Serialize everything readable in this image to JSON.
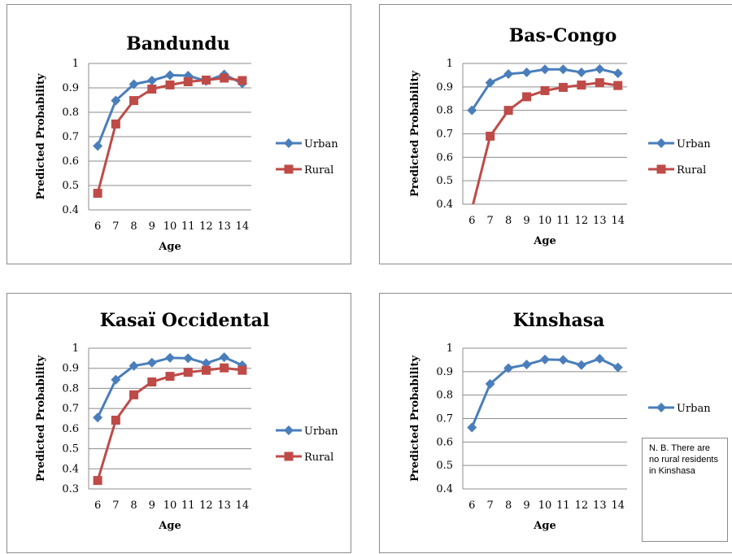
{
  "colors": {
    "urban": "#4a7ebb",
    "rural": "#be4b48",
    "grid": "#8c8c8c",
    "axis": "#8c8c8c"
  },
  "chart_data": [
    {
      "type": "line",
      "title": "Bandundu",
      "xlabel": "Age",
      "ylabel": "Predicted Probability",
      "categories": [
        "6",
        "7",
        "8",
        "9",
        "10",
        "11",
        "12",
        "13",
        "14"
      ],
      "ylim": [
        0.4,
        1
      ],
      "yticks": [
        "0.4",
        "0.5",
        "0.6",
        "0.7",
        "0.8",
        "0.9",
        "1"
      ],
      "grid": true,
      "legend": "right",
      "series": [
        {
          "name": "Urban",
          "color": "#4a7ebb",
          "marker": "diamond",
          "values": [
            0.662,
            0.848,
            0.915,
            0.93,
            0.952,
            0.95,
            0.928,
            0.955,
            0.918
          ]
        },
        {
          "name": "Rural",
          "color": "#be4b48",
          "marker": "square",
          "values": [
            0.468,
            0.752,
            0.848,
            0.895,
            0.912,
            0.925,
            0.932,
            0.94,
            0.93
          ]
        }
      ]
    },
    {
      "type": "line",
      "title": "Bas-Congo",
      "xlabel": "Age",
      "ylabel": "Predicted Probability",
      "categories": [
        "6",
        "7",
        "8",
        "9",
        "10",
        "11",
        "12",
        "13",
        "14"
      ],
      "ylim": [
        0.4,
        1
      ],
      "yticks": [
        "0.4",
        "0.5",
        "0.6",
        "0.7",
        "0.8",
        "0.9",
        "1"
      ],
      "grid": true,
      "legend": "right",
      "series": [
        {
          "name": "Urban",
          "color": "#4a7ebb",
          "marker": "diamond",
          "values": [
            0.8,
            0.918,
            0.955,
            0.962,
            0.975,
            0.975,
            0.962,
            0.976,
            0.958
          ]
        },
        {
          "name": "Rural",
          "color": "#be4b48",
          "marker": "square",
          "values": [
            0.38,
            0.69,
            0.8,
            0.858,
            0.884,
            0.898,
            0.908,
            0.918,
            0.906
          ]
        }
      ]
    },
    {
      "type": "line",
      "title": "Kasaï Occidental",
      "xlabel": "Age",
      "ylabel": "Predicted Probability",
      "categories": [
        "6",
        "7",
        "8",
        "9",
        "10",
        "11",
        "12",
        "13",
        "14"
      ],
      "ylim": [
        0.3,
        1
      ],
      "yticks": [
        "0.3",
        "0.4",
        "0.5",
        "0.6",
        "0.7",
        "0.8",
        "0.9",
        "1"
      ],
      "grid": true,
      "legend": "right",
      "series": [
        {
          "name": "Urban",
          "color": "#4a7ebb",
          "marker": "diamond",
          "values": [
            0.655,
            0.843,
            0.912,
            0.928,
            0.952,
            0.95,
            0.925,
            0.955,
            0.915
          ]
        },
        {
          "name": "Rural",
          "color": "#be4b48",
          "marker": "square",
          "values": [
            0.342,
            0.642,
            0.768,
            0.832,
            0.86,
            0.88,
            0.89,
            0.902,
            0.89
          ]
        }
      ]
    },
    {
      "type": "line",
      "title": "Kinshasa",
      "xlabel": "Age",
      "ylabel": "Predicted Probability",
      "categories": [
        "6",
        "7",
        "8",
        "9",
        "10",
        "11",
        "12",
        "13",
        "14"
      ],
      "ylim": [
        0.4,
        1
      ],
      "yticks": [
        "0.4",
        "0.5",
        "0.6",
        "0.7",
        "0.8",
        "0.9",
        "1"
      ],
      "grid": true,
      "legend": "right",
      "note": "N. B. There are no rural residents in Kinshasa",
      "series": [
        {
          "name": "Urban",
          "color": "#4a7ebb",
          "marker": "diamond",
          "values": [
            0.662,
            0.848,
            0.915,
            0.93,
            0.952,
            0.95,
            0.928,
            0.955,
            0.918
          ]
        }
      ]
    }
  ]
}
